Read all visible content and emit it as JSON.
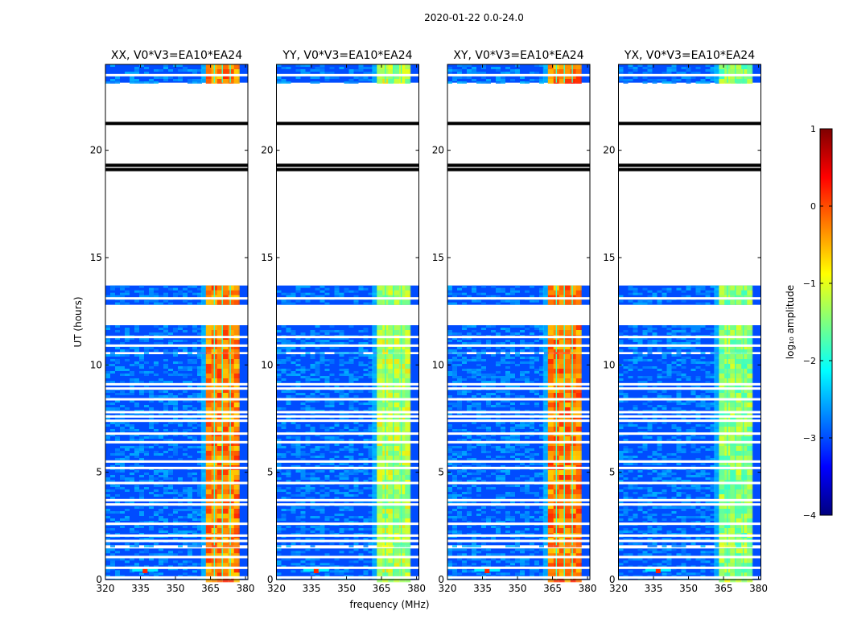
{
  "suptitle": "2020-01-22 0.0-24.0",
  "chart_data": {
    "type": "heatmap",
    "xlabel": "frequency (MHz)",
    "ylabel": "UT (hours)",
    "xlim": [
      320,
      381
    ],
    "ylim": [
      0,
      24
    ],
    "xticks": [
      320,
      335,
      350,
      365,
      380
    ],
    "yticks": [
      0,
      5,
      10,
      15,
      20
    ],
    "panels": [
      {
        "title": "XX, V0*V3=EA10*EA24",
        "band_level": 0.0
      },
      {
        "title": "YY, V0*V3=EA10*EA24",
        "band_level": -1.0
      },
      {
        "title": "XY, V0*V3=EA10*EA24",
        "band_level": 0.0
      },
      {
        "title": "YX, V0*V3=EA10*EA24",
        "band_level": -1.2
      }
    ],
    "data_segments_ut": [
      [
        0.0,
        1.45
      ],
      [
        1.6,
        10.5
      ],
      [
        10.6,
        11.85
      ],
      [
        12.8,
        13.7
      ],
      [
        23.15,
        24.0
      ]
    ],
    "blank_lines_ut": [
      0.1,
      0.55,
      1.05,
      1.8,
      2.05,
      2.6,
      3.5,
      3.7,
      4.5,
      5.2,
      5.5,
      6.4,
      6.8,
      7.4,
      7.6,
      7.8,
      8.4,
      8.9,
      9.1,
      10.9,
      11.3,
      13.1,
      23.5
    ],
    "dark_lines_ut": [
      19.1,
      19.3,
      21.25
    ],
    "band_mhz": [
      363.0,
      377.0
    ],
    "band_gaps_mhz": [
      [
        366.4,
        366.9
      ],
      [
        369.8,
        370.3
      ],
      [
        373.2,
        373.7
      ]
    ],
    "rfi_spike_mhz": 337.0,
    "colorbar": {
      "label": "log₁₀ amplitude",
      "range": [
        -4,
        1
      ],
      "ticks": [
        1,
        0,
        -1,
        -2,
        -3,
        -4
      ],
      "colormap": [
        "#00007f",
        "#0000ff",
        "#007fff",
        "#00ffff",
        "#7fff7f",
        "#ffff00",
        "#ff7f00",
        "#ff0000",
        "#7f0000"
      ]
    }
  }
}
